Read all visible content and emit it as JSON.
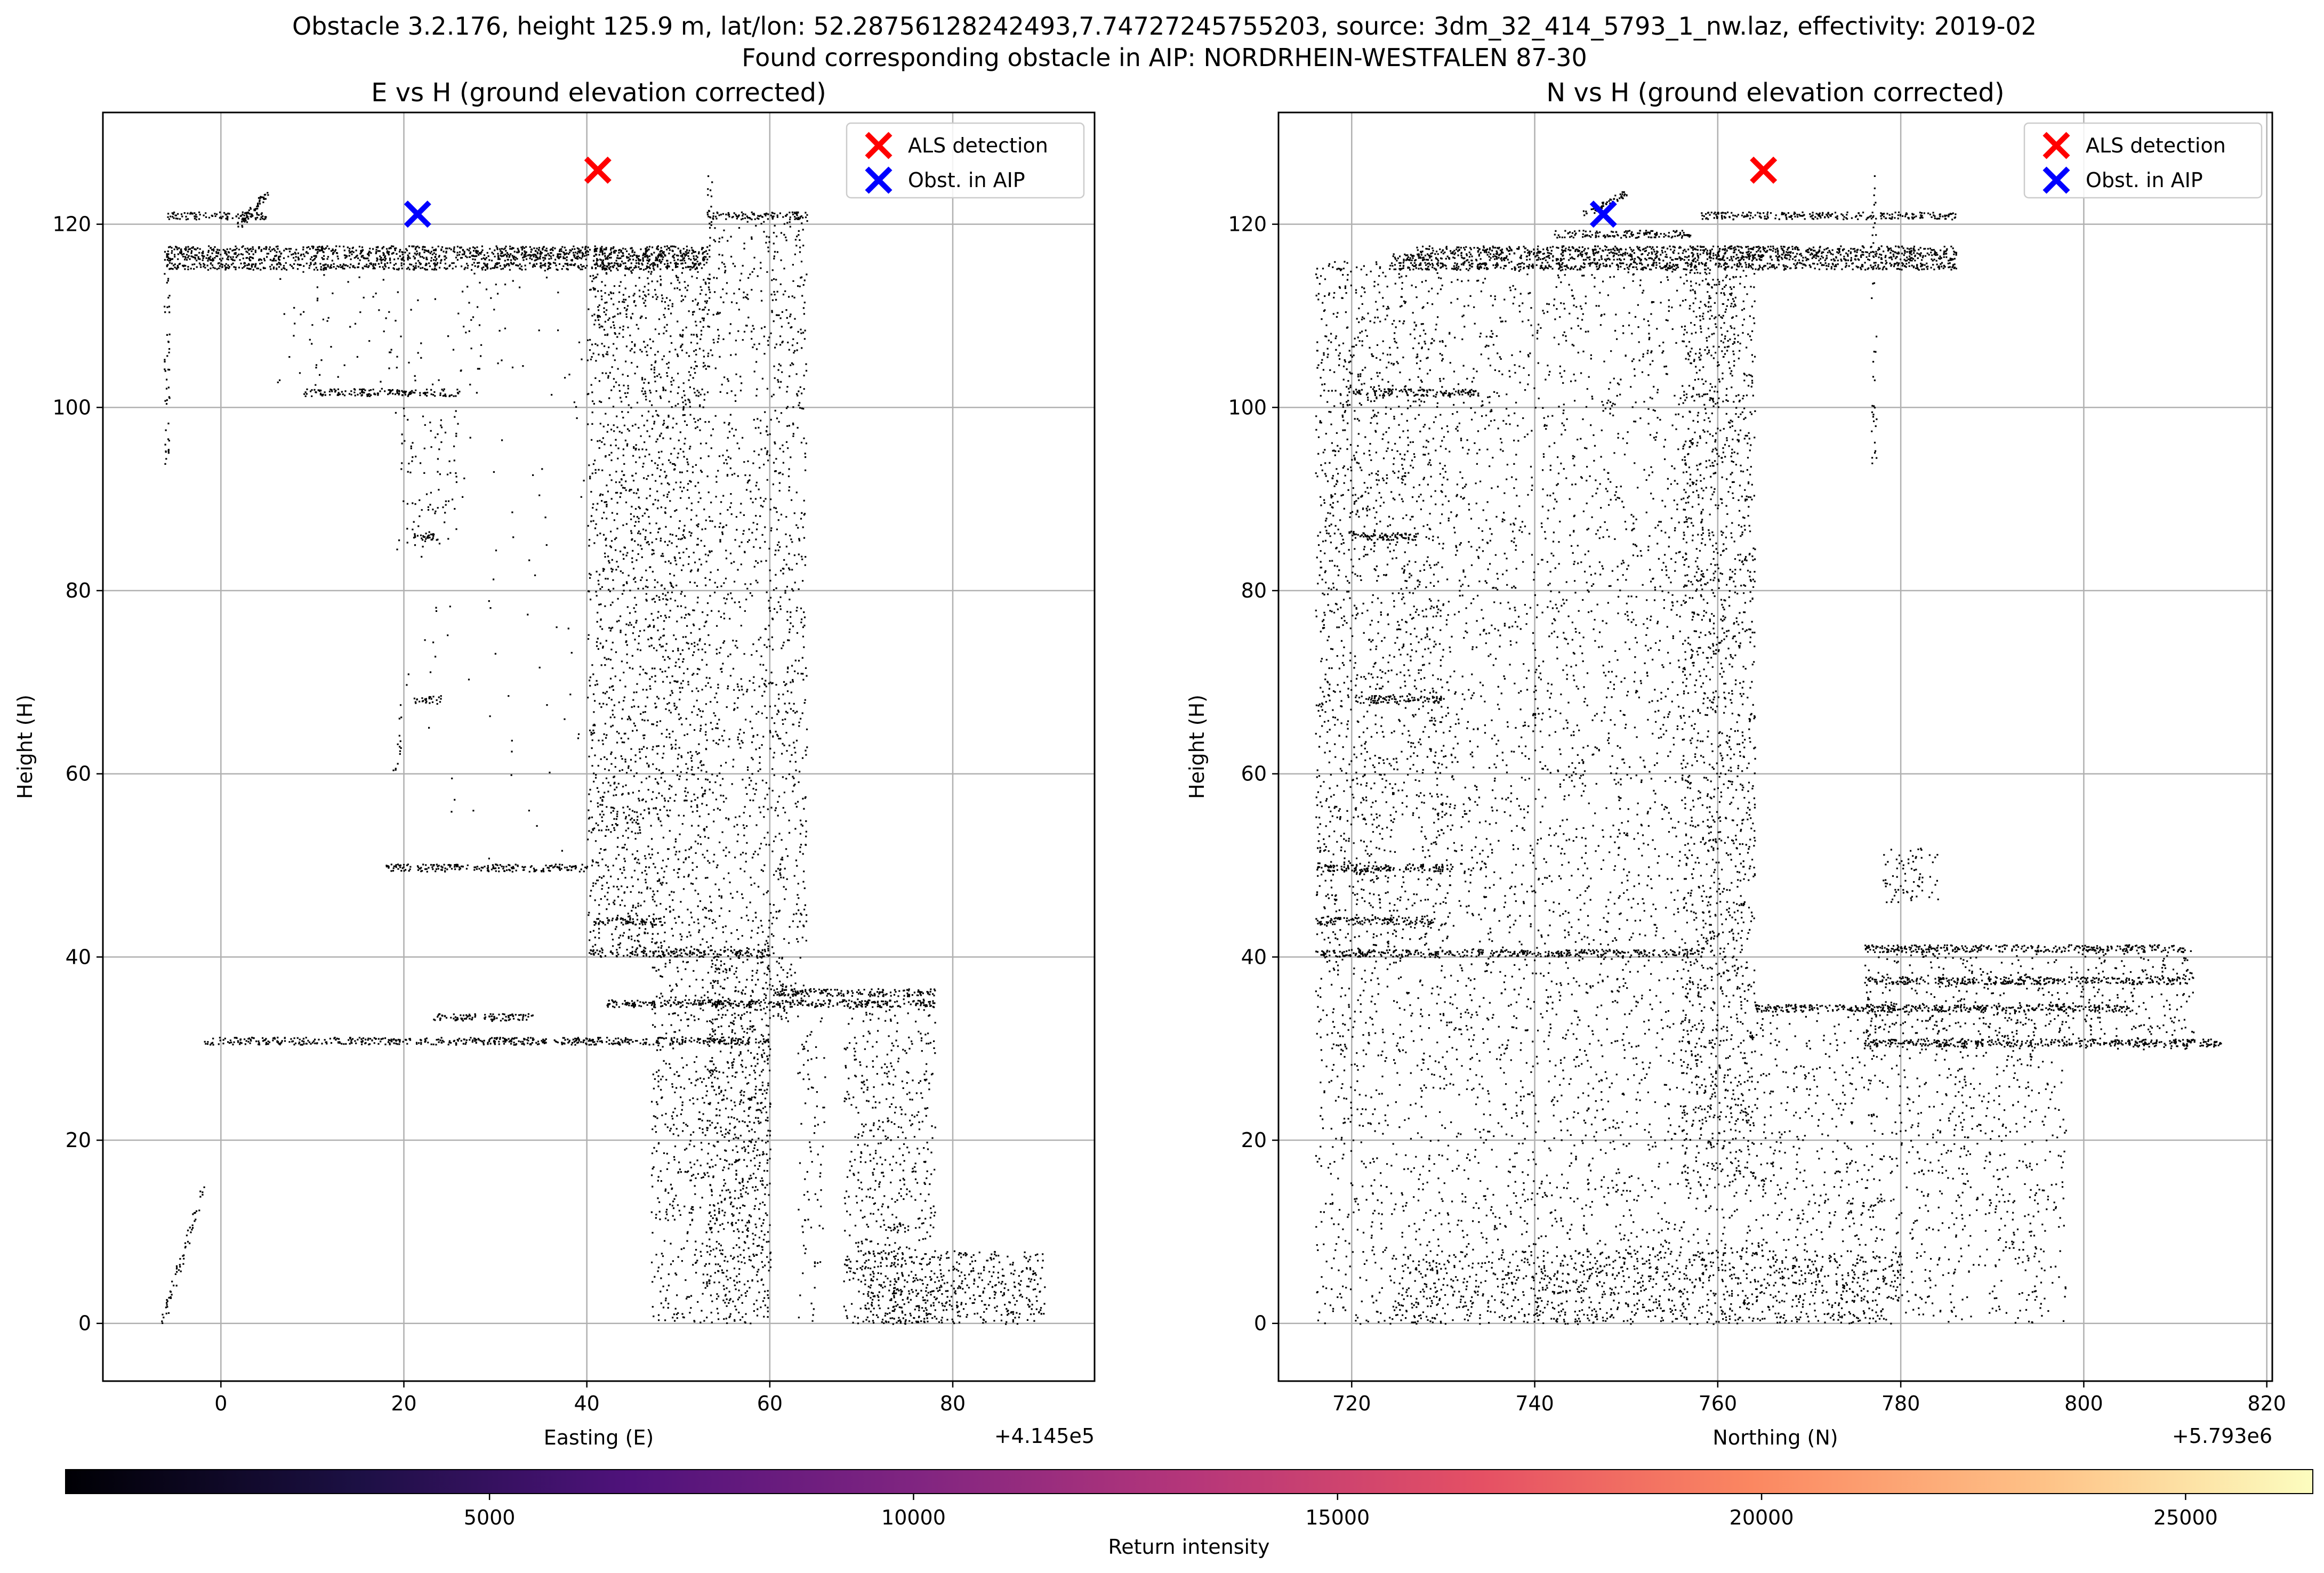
{
  "figure": {
    "title_line1": "Obstacle 3.2.176, height 125.9 m, lat/lon: 52.28756128242493,7.74727245755203, source: 3dm_32_414_5793_1_nw.laz, effectivity: 2019-02",
    "title_line2": "Found corresponding obstacle in AIP: NORDRHEIN-WESTFALEN 87-30"
  },
  "colors": {
    "points": "#000000",
    "als_detection": "#ff0000",
    "obst_in_aip": "#0000ff",
    "grid": "#b0b0b0",
    "colormap": "magma"
  },
  "chart_data": [
    {
      "type": "scatter",
      "title": "E vs H (ground elevation corrected)",
      "xlabel": "Easting (E)",
      "ylabel": "Height (H)",
      "x_offset_label": "+4.145e5",
      "xlim": [
        -12.9,
        95.5
      ],
      "ylim": [
        -6.3,
        132.2
      ],
      "xticks": [
        0,
        20,
        40,
        60,
        80
      ],
      "yticks": [
        0,
        20,
        40,
        60,
        80,
        100,
        120
      ],
      "grid": true,
      "legend_position": "top-right",
      "legend": [
        "ALS detection",
        "Obst. in AIP"
      ],
      "markers": [
        {
          "name": "ALS detection",
          "x": 41.2,
          "y": 125.9
        },
        {
          "name": "Obst. in AIP",
          "x": 21.5,
          "y": 121.1
        }
      ],
      "point_cloud": {
        "hlines": [
          {
            "x": [
              -6,
              53
            ],
            "y": 116.5
          },
          {
            "x": [
              -6,
              53
            ],
            "y": 115.5
          },
          {
            "x": [
              -6,
              53
            ],
            "y": 117.3
          },
          {
            "x": [
              -6,
              5
            ],
            "y": 121
          },
          {
            "x": [
              53,
              64
            ],
            "y": 121
          },
          {
            "x": [
              9,
              26
            ],
            "y": 101.7
          },
          {
            "x": [
              18,
              40
            ],
            "y": 49.8
          },
          {
            "x": [
              40,
              60
            ],
            "y": 40.5
          },
          {
            "x": [
              -2,
              60
            ],
            "y": 30.9
          },
          {
            "x": [
              23,
              34
            ],
            "y": 33.5
          },
          {
            "x": [
              42,
              78
            ],
            "y": 35
          },
          {
            "x": [
              60,
              78
            ],
            "y": 36.2
          },
          {
            "x": [
              41,
              48
            ],
            "y": 44
          },
          {
            "x": [
              21,
              24
            ],
            "y": 86
          },
          {
            "x": [
              21,
              24
            ],
            "y": 68.2
          }
        ],
        "vbands": [
          {
            "x": [
              40,
              53
            ],
            "y": [
              41,
              117
            ],
            "density": 2.0
          },
          {
            "x": [
              53,
              60
            ],
            "y": [
              0,
              121
            ],
            "density": 1.2
          },
          {
            "x": [
              60,
              64
            ],
            "y": [
              33,
              121
            ],
            "density": 1.5
          },
          {
            "x": [
              47,
              60
            ],
            "y": [
              0,
              41
            ],
            "density": 1.6
          },
          {
            "x": [
              68,
              78
            ],
            "y": [
              0,
              36
            ],
            "density": 1.6
          },
          {
            "x": [
              63,
              66
            ],
            "y": [
              0,
              34
            ],
            "density": 0.8
          },
          {
            "x": [
              70,
              90
            ],
            "y": [
              0,
              8
            ],
            "density": 3.2
          },
          {
            "x": [
              19,
              26
            ],
            "y": [
              84,
              100
            ],
            "density": 0.7
          },
          {
            "x": [
              6,
              22
            ],
            "y": [
              101,
              116
            ],
            "density": 0.3
          },
          {
            "x": [
              20,
              40
            ],
            "y": [
              50,
              116
            ],
            "density": 0.08
          },
          {
            "x": [
              26,
              31
            ],
            "y": [
              104,
              116
            ],
            "density": 0.4
          }
        ],
        "scatter_lines": [
          {
            "from": [
              -6.5,
              0
            ],
            "to": [
              -2,
              15
            ],
            "n": 60
          },
          {
            "from": [
              -6,
              93
            ],
            "to": [
              -6,
              117
            ],
            "n": 50
          },
          {
            "from": [
              53,
              110
            ],
            "to": [
              53.5,
              126
            ],
            "n": 30
          },
          {
            "from": [
              2,
              120
            ],
            "to": [
              5,
              123.5
            ],
            "n": 60
          },
          {
            "from": [
              19,
              60
            ],
            "to": [
              20,
              70
            ],
            "n": 15
          }
        ]
      }
    },
    {
      "type": "scatter",
      "title": "N vs H (ground elevation corrected)",
      "xlabel": "Northing (N)",
      "ylabel": "Height (H)",
      "x_offset_label": "+5.793e6",
      "xlim": [
        712.0,
        820.6
      ],
      "ylim": [
        -6.3,
        132.2
      ],
      "xticks": [
        720,
        740,
        760,
        780,
        800,
        820
      ],
      "yticks": [
        0,
        20,
        40,
        60,
        80,
        100,
        120
      ],
      "grid": true,
      "legend_position": "top-right",
      "legend": [
        "ALS detection",
        "Obst. in AIP"
      ],
      "markers": [
        {
          "name": "ALS detection",
          "x": 765.0,
          "y": 125.9
        },
        {
          "name": "Obst. in AIP",
          "x": 747.5,
          "y": 121.1
        }
      ],
      "point_cloud": {
        "hlines": [
          {
            "x": [
              724,
              786
            ],
            "y": 116.5
          },
          {
            "x": [
              724,
              786
            ],
            "y": 115.5
          },
          {
            "x": [
              727,
              786
            ],
            "y": 117.3
          },
          {
            "x": [
              758,
              786
            ],
            "y": 121
          },
          {
            "x": [
              716,
              757
            ],
            "y": 40.5
          },
          {
            "x": [
              716,
              731
            ],
            "y": 49.8
          },
          {
            "x": [
              716,
              729
            ],
            "y": 44
          },
          {
            "x": [
              720,
              734
            ],
            "y": 101.7
          },
          {
            "x": [
              776,
              811
            ],
            "y": 41
          },
          {
            "x": [
              776,
              811
            ],
            "y": 37.5
          },
          {
            "x": [
              764,
              805
            ],
            "y": 34.5
          },
          {
            "x": [
              776,
              815
            ],
            "y": 30.7
          },
          {
            "x": [
              720,
              727
            ],
            "y": 86
          },
          {
            "x": [
              720,
              730
            ],
            "y": 68.2
          },
          {
            "x": [
              742,
              757
            ],
            "y": 119
          }
        ],
        "vbands": [
          {
            "x": [
              716,
              764
            ],
            "y": [
              0,
              116
            ],
            "density": 0.9
          },
          {
            "x": [
              756,
              764
            ],
            "y": [
              15,
              117
            ],
            "density": 1.4
          },
          {
            "x": [
              764,
              798
            ],
            "y": [
              0,
              35
            ],
            "density": 1.0
          },
          {
            "x": [
              724,
              780
            ],
            "y": [
              0,
              8
            ],
            "density": 2.0
          },
          {
            "x": [
              776,
              812
            ],
            "y": [
              30,
              41
            ],
            "density": 1.2
          },
          {
            "x": [
              778,
              784
            ],
            "y": [
              46,
              52
            ],
            "density": 2.0
          },
          {
            "x": [
              716,
              730
            ],
            "y": [
              40,
              116
            ],
            "density": 0.6
          }
        ],
        "scatter_lines": [
          {
            "from": [
              777,
              93
            ],
            "to": [
              777,
              126
            ],
            "n": 40
          },
          {
            "from": [
              717,
              85
            ],
            "to": [
              721,
              112
            ],
            "n": 40
          },
          {
            "from": [
              745,
              121
            ],
            "to": [
              750,
              123.5
            ],
            "n": 50
          }
        ]
      }
    }
  ],
  "colorbar": {
    "label": "Return intensity",
    "cmap": "magma",
    "vmin": 1,
    "vmax": 26500,
    "ticks": [
      5000,
      10000,
      15000,
      20000,
      25000
    ]
  }
}
